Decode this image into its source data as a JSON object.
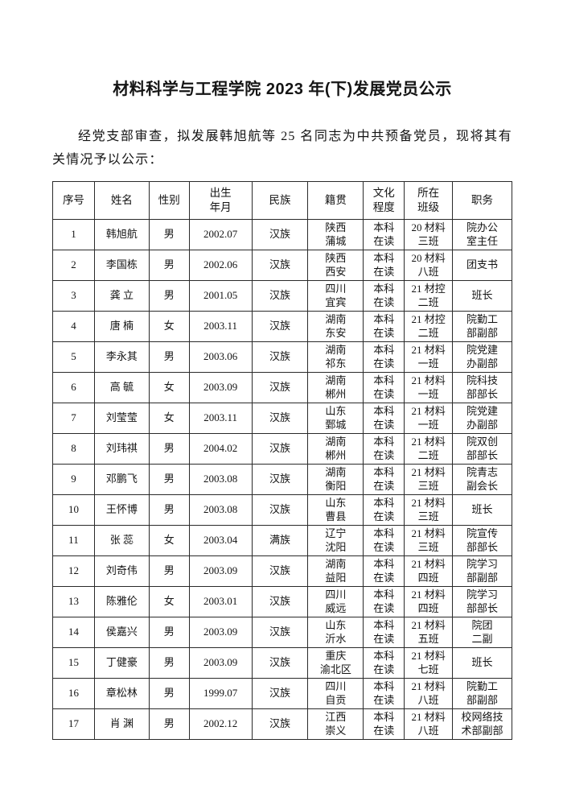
{
  "doc": {
    "title": "材料科学与工程学院 2023 年(下)发展党员公示",
    "intro": "经党支部审查，拟发展韩旭航等 25 名同志为中共预备党员，现将其有关情况予以公示："
  },
  "table": {
    "headers": [
      "序号",
      "姓名",
      "性别",
      "出生\n年月",
      "民族",
      "籍贯",
      "文化\n程度",
      "所在\n班级",
      "职务"
    ],
    "rows": [
      [
        "1",
        "韩旭航",
        "男",
        "2002.07",
        "汉族",
        "陕西\n蒲城",
        "本科\n在读",
        "20 材料\n三班",
        "院办公\n室主任"
      ],
      [
        "2",
        "李国栋",
        "男",
        "2002.06",
        "汉族",
        "陕西\n西安",
        "本科\n在读",
        "20 材料\n八班",
        "团支书"
      ],
      [
        "3",
        "龚 立",
        "男",
        "2001.05",
        "汉族",
        "四川\n宜宾",
        "本科\n在读",
        "21 材控\n二班",
        "班长"
      ],
      [
        "4",
        "唐 楠",
        "女",
        "2003.11",
        "汉族",
        "湖南\n东安",
        "本科\n在读",
        "21 材控\n二班",
        "院勤工\n部副部"
      ],
      [
        "5",
        "李永其",
        "男",
        "2003.06",
        "汉族",
        "湖南\n祁东",
        "本科\n在读",
        "21 材料\n一班",
        "院党建\n办副部"
      ],
      [
        "6",
        "高 毓",
        "女",
        "2003.09",
        "汉族",
        "湖南\n郴州",
        "本科\n在读",
        "21 材料\n一班",
        "院科技\n部部长"
      ],
      [
        "7",
        "刘莹莹",
        "女",
        "2003.11",
        "汉族",
        "山东\n鄄城",
        "本科\n在读",
        "21 材料\n一班",
        "院党建\n办副部"
      ],
      [
        "8",
        "刘玮祺",
        "男",
        "2004.02",
        "汉族",
        "湖南\n郴州",
        "本科\n在读",
        "21 材料\n二班",
        "院双创\n部部长"
      ],
      [
        "9",
        "邓鹏飞",
        "男",
        "2003.08",
        "汉族",
        "湖南\n衡阳",
        "本科\n在读",
        "21 材料\n三班",
        "院青志\n副会长"
      ],
      [
        "10",
        "王怀博",
        "男",
        "2003.08",
        "汉族",
        "山东\n曹县",
        "本科\n在读",
        "21 材料\n三班",
        "班长"
      ],
      [
        "11",
        "张 蕊",
        "女",
        "2003.04",
        "满族",
        "辽宁\n沈阳",
        "本科\n在读",
        "21 材料\n三班",
        "院宣传\n部部长"
      ],
      [
        "12",
        "刘奇伟",
        "男",
        "2003.09",
        "汉族",
        "湖南\n益阳",
        "本科\n在读",
        "21 材料\n四班",
        "院学习\n部副部"
      ],
      [
        "13",
        "陈雅伦",
        "女",
        "2003.01",
        "汉族",
        "四川\n威远",
        "本科\n在读",
        "21 材料\n四班",
        "院学习\n部部长"
      ],
      [
        "14",
        "侯嘉兴",
        "男",
        "2003.09",
        "汉族",
        "山东\n沂水",
        "本科\n在读",
        "21 材料\n五班",
        "院团\n二副"
      ],
      [
        "15",
        "丁健豪",
        "男",
        "2003.09",
        "汉族",
        "重庆\n渝北区",
        "本科\n在读",
        "21 材料\n七班",
        "班长"
      ],
      [
        "16",
        "章松林",
        "男",
        "1999.07",
        "汉族",
        "四川\n自贡",
        "本科\n在读",
        "21 材料\n八班",
        "院勤工\n部副部"
      ],
      [
        "17",
        "肖 渊",
        "男",
        "2002.12",
        "汉族",
        "江西\n崇义",
        "本科\n在读",
        "21 材料\n八班",
        "校网络技\n术部副部"
      ]
    ]
  }
}
